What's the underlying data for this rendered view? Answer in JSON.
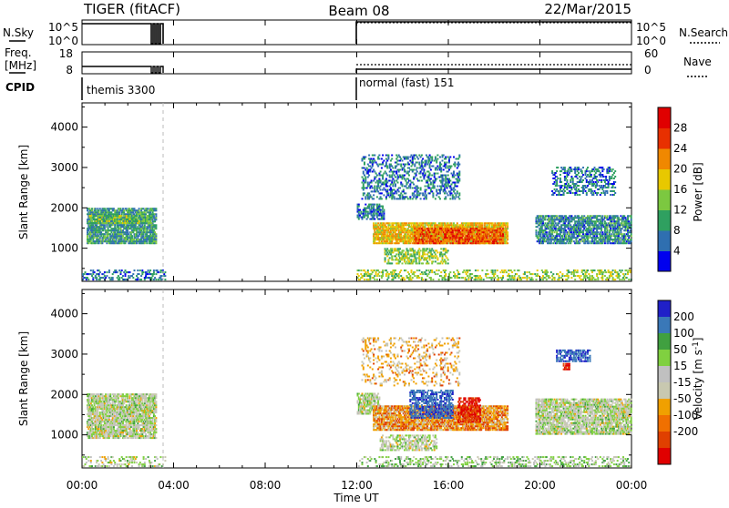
{
  "header": {
    "radar": "TIGER (fitACF)",
    "beam": "Beam 08",
    "date": "22/Mar/2015"
  },
  "nsky_panel": {
    "left_label": "N.Sky",
    "right_label": "N.Search",
    "left_ticks": [
      "10^5",
      "10^0"
    ],
    "right_ticks": [
      "10^5",
      "10^0"
    ]
  },
  "freq_panel": {
    "left_label_line1": "Freq.",
    "left_label_line2": "[MHz]",
    "right_label": "Nave",
    "left_ticks": [
      "18",
      "8"
    ],
    "right_ticks": [
      "60",
      "0"
    ]
  },
  "cpid": {
    "label": "CPID",
    "segments": [
      {
        "text": "themis 3300",
        "start_hour": 0,
        "end_hour": 3.6
      },
      {
        "text": "normal (fast) 151",
        "start_hour": 12,
        "end_hour": 24
      }
    ]
  },
  "x_axis": {
    "label": "Time UT",
    "ticks": [
      "00:00",
      "04:00",
      "08:00",
      "12:00",
      "16:00",
      "20:00",
      "00:00"
    ]
  },
  "colors": {
    "power": [
      "#0000ee",
      "#2f6fb0",
      "#2fa060",
      "#7cc840",
      "#e8c800",
      "#f08800",
      "#e83000",
      "#e00000"
    ],
    "velocity": [
      "#2020c8",
      "#3a78b8",
      "#40a040",
      "#80d040",
      "#c0c0c0",
      "#c8c8b0",
      "#f0a000",
      "#f07000",
      "#e04000",
      "#e00000"
    ]
  },
  "chart_data": [
    {
      "type": "heatmap",
      "quantity": "power",
      "ylabel": "Slant Range [km]",
      "xlabel": "Time UT",
      "x_range_hours": [
        0,
        24
      ],
      "ylim_km": [
        180,
        4600
      ],
      "y_ticks": [
        "1000",
        "2000",
        "3000",
        "4000"
      ],
      "colorbar_label": "Power [dB]",
      "colorbar_ticks": [
        "4",
        "8",
        "12",
        "16",
        "20",
        "24",
        "28"
      ],
      "colorbar_range": [
        0,
        32
      ],
      "blobs": [
        {
          "t0": 0.2,
          "t1": 3.2,
          "r0": 1100,
          "r1": 2000,
          "val": 9,
          "density": 0.8
        },
        {
          "t0": 0.3,
          "t1": 3.0,
          "r0": 1600,
          "r1": 1800,
          "val": 12,
          "density": 0.7
        },
        {
          "t0": 12.0,
          "t1": 13.2,
          "r0": 1700,
          "r1": 2100,
          "val": 7,
          "density": 0.6
        },
        {
          "t0": 12.7,
          "t1": 18.6,
          "r0": 1100,
          "r1": 1600,
          "val": 19,
          "density": 0.85
        },
        {
          "t0": 14.5,
          "t1": 18.4,
          "r0": 1100,
          "r1": 1500,
          "val": 25,
          "density": 0.7
        },
        {
          "t0": 13.2,
          "t1": 16.0,
          "r0": 600,
          "r1": 1000,
          "val": 14,
          "density": 0.5
        },
        {
          "t0": 12.2,
          "t1": 16.5,
          "r0": 2200,
          "r1": 3300,
          "val": 7,
          "density": 0.35
        },
        {
          "t0": 19.8,
          "t1": 24.0,
          "r0": 1100,
          "r1": 1800,
          "val": 8,
          "density": 0.7
        },
        {
          "t0": 20.5,
          "t1": 23.3,
          "r0": 2300,
          "r1": 3000,
          "val": 7,
          "density": 0.4
        },
        {
          "t0": 12.0,
          "t1": 24.0,
          "r0": 200,
          "r1": 450,
          "val": 15,
          "density": 0.35
        },
        {
          "t0": 0.0,
          "t1": 3.6,
          "r0": 200,
          "r1": 450,
          "val": 7,
          "density": 0.3
        }
      ]
    },
    {
      "type": "heatmap",
      "quantity": "velocity",
      "ylabel": "Slant Range [km]",
      "xlabel": "Time UT",
      "x_range_hours": [
        0,
        24
      ],
      "ylim_km": [
        180,
        4600
      ],
      "y_ticks": [
        "1000",
        "2000",
        "3000",
        "4000"
      ],
      "colorbar_label": "Velocity [m s^-1]",
      "colorbar_ticks": [
        "200",
        "100",
        "50",
        "15",
        "-15",
        "-50",
        "-100",
        "-200"
      ],
      "colorbar_range": [
        -250,
        250
      ],
      "blobs": [
        {
          "t0": 0.2,
          "t1": 3.2,
          "r0": 900,
          "r1": 2000,
          "val": 0,
          "density": 0.8
        },
        {
          "t0": 12.0,
          "t1": 13.0,
          "r0": 1500,
          "r1": 2000,
          "val": 0,
          "density": 0.7
        },
        {
          "t0": 12.7,
          "t1": 18.6,
          "r0": 1100,
          "r1": 1700,
          "val": -80,
          "density": 0.85
        },
        {
          "t0": 14.3,
          "t1": 16.2,
          "r0": 1400,
          "r1": 2100,
          "val": 170,
          "density": 0.6
        },
        {
          "t0": 16.4,
          "t1": 17.4,
          "r0": 1300,
          "r1": 1900,
          "val": -210,
          "density": 0.6
        },
        {
          "t0": 13.0,
          "t1": 15.5,
          "r0": 600,
          "r1": 1000,
          "val": 0,
          "density": 0.5
        },
        {
          "t0": 19.8,
          "t1": 24.0,
          "r0": 1000,
          "r1": 1900,
          "val": 0,
          "density": 0.75
        },
        {
          "t0": 20.7,
          "t1": 22.2,
          "r0": 2800,
          "r1": 3100,
          "val": 190,
          "density": 0.6
        },
        {
          "t0": 21.0,
          "t1": 21.3,
          "r0": 2600,
          "r1": 2750,
          "val": -220,
          "density": 0.8
        },
        {
          "t0": 12.0,
          "t1": 24.0,
          "r0": 200,
          "r1": 450,
          "val": 20,
          "density": 0.35
        },
        {
          "t0": 0.0,
          "t1": 3.6,
          "r0": 200,
          "r1": 450,
          "val": 0,
          "density": 0.3
        },
        {
          "t0": 12.2,
          "t1": 16.5,
          "r0": 2200,
          "r1": 3400,
          "val": -60,
          "density": 0.2
        }
      ]
    }
  ]
}
